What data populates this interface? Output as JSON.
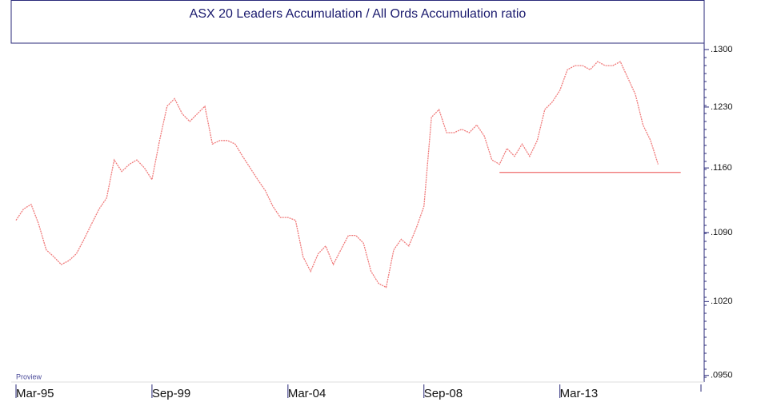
{
  "chart_data": {
    "type": "line",
    "title": "ASX 20 Leaders Accumulation / All Ords Accumulation ratio",
    "watermark": "Proview",
    "categories": [
      "Mar-95",
      null,
      null,
      null,
      null,
      null,
      null,
      null,
      null,
      null,
      null,
      null,
      null,
      null,
      null,
      null,
      null,
      null,
      "Sep-99",
      null,
      null,
      null,
      null,
      null,
      null,
      null,
      null,
      null,
      null,
      null,
      null,
      null,
      null,
      null,
      null,
      null,
      "Mar-04",
      null,
      null,
      null,
      null,
      null,
      null,
      null,
      null,
      null,
      null,
      null,
      null,
      null,
      null,
      null,
      null,
      null,
      "Sep-08",
      null,
      null,
      null,
      null,
      null,
      null,
      null,
      null,
      null,
      null,
      null,
      null,
      null,
      null,
      null,
      null,
      null,
      "Mar-13",
      null,
      null,
      null,
      null,
      null,
      null,
      null,
      null,
      null,
      null,
      null,
      null,
      null,
      null,
      null,
      null
    ],
    "series": [
      {
        "color": "#f07a7a",
        "values": [
          0.1103,
          0.1115,
          0.112,
          0.1099,
          0.1072,
          0.1065,
          0.1057,
          0.1061,
          0.1068,
          0.1083,
          0.1099,
          0.1115,
          0.1127,
          0.1169,
          0.1156,
          0.1164,
          0.1169,
          0.116,
          0.1147,
          0.1191,
          0.1231,
          0.124,
          0.1222,
          0.1213,
          0.1222,
          0.1231,
          0.1187,
          0.1191,
          0.1191,
          0.1187,
          0.1173,
          0.116,
          0.1147,
          0.1135,
          0.1118,
          0.1106,
          0.1106,
          0.1103,
          0.1065,
          0.105,
          0.1068,
          0.1076,
          0.1057,
          0.1072,
          0.1087,
          0.1087,
          0.1079,
          0.105,
          0.1038,
          0.1034,
          0.1072,
          0.1083,
          0.1076,
          0.1095,
          0.1118,
          0.1218,
          0.1227,
          0.12,
          0.12,
          0.1204,
          0.12,
          0.1209,
          0.1196,
          0.1169,
          0.1164,
          0.1182,
          0.1173,
          0.1187,
          0.1173,
          0.1191,
          0.1227,
          0.1236,
          0.125,
          0.1275,
          0.128,
          0.128,
          0.1275,
          0.1285,
          0.128,
          0.128,
          0.1285,
          0.1265,
          0.1245,
          0.1209,
          0.1191,
          0.1164,
          null,
          null,
          null
        ]
      },
      {
        "color": "#f07a7a",
        "values": [
          null,
          null,
          null,
          null,
          null,
          null,
          null,
          null,
          null,
          null,
          null,
          null,
          null,
          null,
          null,
          null,
          null,
          null,
          null,
          null,
          null,
          null,
          null,
          null,
          null,
          null,
          null,
          null,
          null,
          null,
          null,
          null,
          null,
          null,
          null,
          null,
          null,
          null,
          null,
          null,
          null,
          null,
          null,
          null,
          null,
          null,
          null,
          null,
          null,
          null,
          null,
          null,
          null,
          null,
          null,
          null,
          null,
          null,
          null,
          null,
          null,
          null,
          null,
          null,
          0.1155,
          0.1155,
          0.1155,
          0.1155,
          0.1155,
          0.1155,
          0.1155,
          0.1155,
          0.1155,
          0.1155,
          0.1155,
          0.1155,
          0.1155,
          0.1155,
          0.1155,
          0.1155,
          0.1155,
          0.1155,
          0.1155,
          0.1155,
          0.1155,
          0.1155,
          0.1155,
          0.1155,
          0.1155
        ]
      }
    ],
    "ylim": [
      0.0944,
      0.1308
    ],
    "log_y": true,
    "yticks": [
      {
        "value": 0.095,
        "label": ".0950"
      },
      {
        "value": 0.102,
        "label": ".1020"
      },
      {
        "value": 0.109,
        "label": ".1090"
      },
      {
        "value": 0.116,
        "label": ".1160"
      },
      {
        "value": 0.123,
        "label": ".1230"
      },
      {
        "value": 0.13,
        "label": ".1300"
      }
    ]
  }
}
